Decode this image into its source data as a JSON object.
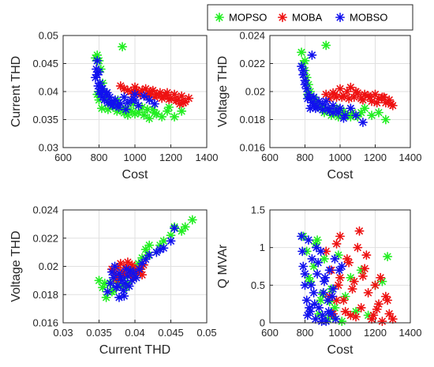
{
  "colors": {
    "MOPSO": "#22ee22",
    "MOBA": "#ee1111",
    "MOBSO": "#1111ee",
    "grid": "#e0e0e0",
    "axis": "#262626"
  },
  "legend": {
    "placement": "top-right",
    "entries": [
      "MOPSO",
      "MOBA",
      "MOBSO"
    ]
  },
  "chart_data": [
    {
      "type": "scatter",
      "xlabel": "Cost",
      "ylabel": "Current THD",
      "xlim": [
        600,
        1400
      ],
      "ylim": [
        0.03,
        0.05
      ],
      "xticks": [
        "600",
        "800",
        "1000",
        "1200",
        "1400"
      ],
      "yticks": [
        "0.03",
        "0.035",
        "0.04",
        "0.045",
        "0.05"
      ],
      "grid": true,
      "series": [
        {
          "name": "MOPSO",
          "x": [
            780,
            790,
            800,
            810,
            820,
            830,
            840,
            860,
            880,
            900,
            920,
            940,
            960,
            980,
            1000,
            1020,
            1050,
            1080,
            1100,
            1120,
            1150,
            1180,
            1220,
            1260,
            930,
            800,
            790,
            815,
            850,
            870,
            905,
            950,
            990,
            1040,
            1070,
            1110,
            1190
          ],
          "y": [
            0.046,
            0.0465,
            0.0455,
            0.044,
            0.0415,
            0.04,
            0.039,
            0.038,
            0.0375,
            0.0365,
            0.0367,
            0.0362,
            0.0358,
            0.0365,
            0.036,
            0.0363,
            0.0358,
            0.0352,
            0.0368,
            0.036,
            0.0355,
            0.0365,
            0.0355,
            0.0365,
            0.048,
            0.0385,
            0.0395,
            0.037,
            0.0368,
            0.0375,
            0.0385,
            0.037,
            0.0378,
            0.0372,
            0.0368,
            0.0362,
            0.0372
          ]
        },
        {
          "name": "MOBA",
          "x": [
            920,
            940,
            960,
            980,
            1000,
            1020,
            1040,
            1060,
            1080,
            1100,
            1120,
            1140,
            1160,
            1180,
            1200,
            1220,
            1240,
            1260,
            1280,
            1300,
            990,
            1030,
            1070,
            1110,
            1150,
            1190,
            1230,
            1270,
            1010,
            1090,
            1170,
            1250
          ],
          "y": [
            0.041,
            0.0405,
            0.0402,
            0.04,
            0.0408,
            0.0398,
            0.0402,
            0.0405,
            0.0396,
            0.0402,
            0.0395,
            0.0398,
            0.0392,
            0.0398,
            0.0388,
            0.0395,
            0.0385,
            0.0392,
            0.0382,
            0.0388,
            0.0396,
            0.0394,
            0.0392,
            0.039,
            0.0388,
            0.0386,
            0.0384,
            0.038,
            0.0402,
            0.04,
            0.0394,
            0.0378
          ]
        },
        {
          "name": "MOBSO",
          "x": [
            780,
            785,
            790,
            795,
            800,
            805,
            810,
            815,
            820,
            830,
            840,
            850,
            860,
            870,
            880,
            890,
            900,
            920,
            940,
            960,
            980,
            1000,
            1020,
            1050,
            1080,
            1110,
            790,
            800,
            820,
            845,
            875,
            910,
            950,
            1000
          ],
          "y": [
            0.0425,
            0.044,
            0.043,
            0.041,
            0.04,
            0.0415,
            0.0395,
            0.0405,
            0.039,
            0.0385,
            0.0395,
            0.038,
            0.039,
            0.0382,
            0.0378,
            0.0385,
            0.0375,
            0.0378,
            0.039,
            0.038,
            0.0385,
            0.0385,
            0.0375,
            0.0392,
            0.0385,
            0.0378,
            0.0455,
            0.0435,
            0.0405,
            0.0398,
            0.0375,
            0.0372,
            0.0368,
            0.0395
          ]
        }
      ]
    },
    {
      "type": "scatter",
      "xlabel": "Cost",
      "ylabel": "Voltage THD",
      "xlim": [
        600,
        1400
      ],
      "ylim": [
        0.016,
        0.024
      ],
      "xticks": [
        "600",
        "800",
        "1000",
        "1200",
        "1400"
      ],
      "yticks": [
        "0.016",
        "0.018",
        "0.02",
        "0.022",
        "0.024"
      ],
      "grid": true,
      "series": [
        {
          "name": "MOPSO",
          "x": [
            780,
            790,
            800,
            810,
            820,
            830,
            850,
            870,
            890,
            910,
            930,
            950,
            970,
            990,
            1010,
            1040,
            1070,
            1100,
            1140,
            1180,
            1220,
            1260,
            920,
            800,
            815,
            860,
            900,
            940,
            980,
            1020,
            1060,
            1120
          ],
          "y": [
            0.0228,
            0.022,
            0.0215,
            0.021,
            0.0205,
            0.02,
            0.0195,
            0.019,
            0.0188,
            0.0185,
            0.0187,
            0.0183,
            0.0186,
            0.0182,
            0.0184,
            0.0183,
            0.0185,
            0.0182,
            0.0188,
            0.0183,
            0.0185,
            0.018,
            0.0233,
            0.0222,
            0.0198,
            0.0192,
            0.0189,
            0.0186,
            0.0188,
            0.0186,
            0.0182,
            0.0185
          ]
        },
        {
          "name": "MOBA",
          "x": [
            920,
            940,
            960,
            980,
            1000,
            1020,
            1040,
            1060,
            1080,
            1100,
            1120,
            1140,
            1160,
            1180,
            1200,
            1220,
            1240,
            1260,
            1280,
            1300,
            970,
            1010,
            1050,
            1090,
            1130,
            1170,
            1210,
            1250,
            1290
          ],
          "y": [
            0.0198,
            0.0195,
            0.0199,
            0.0196,
            0.0202,
            0.0197,
            0.02,
            0.0203,
            0.0196,
            0.0199,
            0.0195,
            0.0198,
            0.0197,
            0.0193,
            0.0198,
            0.0195,
            0.0196,
            0.0192,
            0.0194,
            0.019,
            0.0198,
            0.0196,
            0.0195,
            0.02,
            0.0194,
            0.0196,
            0.0192,
            0.0196,
            0.0191
          ]
        },
        {
          "name": "MOBSO",
          "x": [
            780,
            790,
            800,
            810,
            820,
            830,
            840,
            850,
            860,
            880,
            900,
            920,
            940,
            960,
            980,
            1000,
            1030,
            1060,
            1090,
            1130,
            790,
            800,
            815,
            830,
            850,
            870,
            900,
            930,
            960,
            990,
            1020,
            840
          ],
          "y": [
            0.0218,
            0.0212,
            0.0208,
            0.0202,
            0.0198,
            0.0195,
            0.0192,
            0.0196,
            0.0188,
            0.0193,
            0.0187,
            0.0193,
            0.0186,
            0.019,
            0.0186,
            0.0188,
            0.0183,
            0.0188,
            0.0183,
            0.0178,
            0.0215,
            0.0205,
            0.0195,
            0.0188,
            0.019,
            0.0189,
            0.0191,
            0.0188,
            0.0185,
            0.0185,
            0.0181,
            0.0226
          ]
        }
      ]
    },
    {
      "type": "scatter",
      "xlabel": "Current THD",
      "ylabel": "Voltage THD",
      "xlim": [
        0.03,
        0.05
      ],
      "ylim": [
        0.016,
        0.024
      ],
      "xticks": [
        "0.03",
        "0.035",
        "0.04",
        "0.045",
        "0.05"
      ],
      "yticks": [
        "0.016",
        "0.018",
        "0.02",
        "0.022",
        "0.024"
      ],
      "grid": true,
      "series": [
        {
          "name": "MOPSO",
          "x": [
            0.035,
            0.0355,
            0.036,
            0.0365,
            0.037,
            0.0375,
            0.038,
            0.0385,
            0.039,
            0.0395,
            0.04,
            0.0405,
            0.041,
            0.0415,
            0.042,
            0.043,
            0.044,
            0.045,
            0.0465,
            0.048,
            0.0358,
            0.0368,
            0.0378,
            0.0388,
            0.0398,
            0.0408,
            0.0418,
            0.0435,
            0.0455,
            0.047
          ],
          "y": [
            0.019,
            0.0185,
            0.0178,
            0.0188,
            0.0183,
            0.019,
            0.0186,
            0.0193,
            0.0188,
            0.0198,
            0.0195,
            0.0202,
            0.0206,
            0.0212,
            0.0215,
            0.021,
            0.0218,
            0.0222,
            0.0225,
            0.0233,
            0.0188,
            0.0182,
            0.0192,
            0.0185,
            0.0192,
            0.0198,
            0.0208,
            0.0215,
            0.0228,
            0.0228
          ]
        },
        {
          "name": "MOBA",
          "x": [
            0.0368,
            0.0372,
            0.0376,
            0.038,
            0.0384,
            0.0388,
            0.0392,
            0.0396,
            0.04,
            0.0404,
            0.0408,
            0.0412,
            0.0378,
            0.0386,
            0.0394,
            0.0402,
            0.0374,
            0.039,
            0.041,
            0.0398
          ],
          "y": [
            0.0198,
            0.0195,
            0.0199,
            0.0202,
            0.0196,
            0.0199,
            0.0196,
            0.0201,
            0.0198,
            0.0195,
            0.0198,
            0.0201,
            0.0193,
            0.0194,
            0.0194,
            0.0196,
            0.0191,
            0.0203,
            0.0194,
            0.0192
          ]
        },
        {
          "name": "MOBSO",
          "x": [
            0.0362,
            0.0366,
            0.037,
            0.0374,
            0.0378,
            0.0382,
            0.0386,
            0.039,
            0.0394,
            0.0398,
            0.0402,
            0.0406,
            0.041,
            0.042,
            0.043,
            0.044,
            0.045,
            0.0455,
            0.0368,
            0.0372,
            0.0376,
            0.038,
            0.0384,
            0.0388,
            0.0392,
            0.0396,
            0.0385,
            0.0378,
            0.0415,
            0.0435
          ],
          "y": [
            0.0182,
            0.0188,
            0.0192,
            0.0185,
            0.0195,
            0.019,
            0.0188,
            0.0193,
            0.0197,
            0.0195,
            0.0192,
            0.0198,
            0.0202,
            0.0208,
            0.021,
            0.0213,
            0.0218,
            0.0227,
            0.0196,
            0.02,
            0.0186,
            0.0192,
            0.0183,
            0.0198,
            0.0186,
            0.019,
            0.0179,
            0.0178,
            0.0205,
            0.0212
          ]
        }
      ]
    },
    {
      "type": "scatter",
      "xlabel": "Cost",
      "ylabel": "Q MVAr",
      "xlim": [
        600,
        1400
      ],
      "ylim": [
        0,
        1.5
      ],
      "xticks": [
        "600",
        "800",
        "1000",
        "1200",
        "1400"
      ],
      "yticks": [
        "0",
        "0.5",
        "1",
        "1.5"
      ],
      "grid": true,
      "series": [
        {
          "name": "MOPSO",
          "x": [
            790,
            810,
            830,
            850,
            870,
            890,
            910,
            930,
            950,
            970,
            990,
            1010,
            1030,
            1060,
            1090,
            1120,
            1160,
            1200,
            1240,
            1270,
            880,
            900,
            940,
            860,
            820,
            960
          ],
          "y": [
            1.15,
            0.95,
            0.55,
            0.75,
            1.1,
            0.3,
            0.85,
            0.05,
            0.45,
            0.2,
            0.9,
            0.02,
            0.35,
            0.6,
            0.15,
            0.7,
            0.1,
            0.5,
            0.55,
            0.88,
            0.12,
            0.38,
            0.28,
            1.05,
            0.6,
            0.08
          ]
        },
        {
          "name": "MOBA",
          "x": [
            920,
            940,
            960,
            980,
            1000,
            1020,
            1040,
            1060,
            1080,
            1100,
            1120,
            1140,
            1160,
            1180,
            1200,
            1220,
            1240,
            1260,
            1280,
            1300,
            950,
            990,
            1030,
            1070,
            1110,
            1150,
            1190,
            1230,
            1270,
            1000,
            1050,
            1130,
            1210,
            980,
            1090
          ],
          "y": [
            0.95,
            0.35,
            0.12,
            1.05,
            0.6,
            0.3,
            0.85,
            0.1,
            0.55,
            1.0,
            0.2,
            0.72,
            0.4,
            0.05,
            0.5,
            0.25,
            0.02,
            0.35,
            0.12,
            0.05,
            0.7,
            0.5,
            0.15,
            0.45,
            1.22,
            0.9,
            0.1,
            0.6,
            0.3,
            1.15,
            0.8,
            0.62,
            0.18,
            0.3,
            0.08
          ]
        },
        {
          "name": "MOBSO",
          "x": [
            780,
            790,
            800,
            810,
            820,
            830,
            840,
            850,
            860,
            870,
            880,
            890,
            900,
            910,
            920,
            930,
            940,
            950,
            960,
            970,
            800,
            815,
            835,
            855,
            875,
            895,
            915,
            935,
            955,
            975,
            995,
            1010,
            785,
            825,
            865,
            905
          ],
          "y": [
            1.15,
            0.75,
            0.5,
            0.3,
            1.1,
            0.15,
            0.85,
            0.4,
            0.05,
            0.65,
            0.2,
            0.95,
            0.1,
            0.55,
            0.02,
            0.3,
            0.7,
            0.12,
            0.45,
            0.85,
            0.65,
            0.1,
            0.5,
            0.25,
            0.8,
            0.02,
            0.6,
            0.15,
            0.35,
            0.05,
            0.7,
            0.75,
            0.95,
            0.2,
            1.0,
            0.4
          ]
        }
      ]
    }
  ]
}
